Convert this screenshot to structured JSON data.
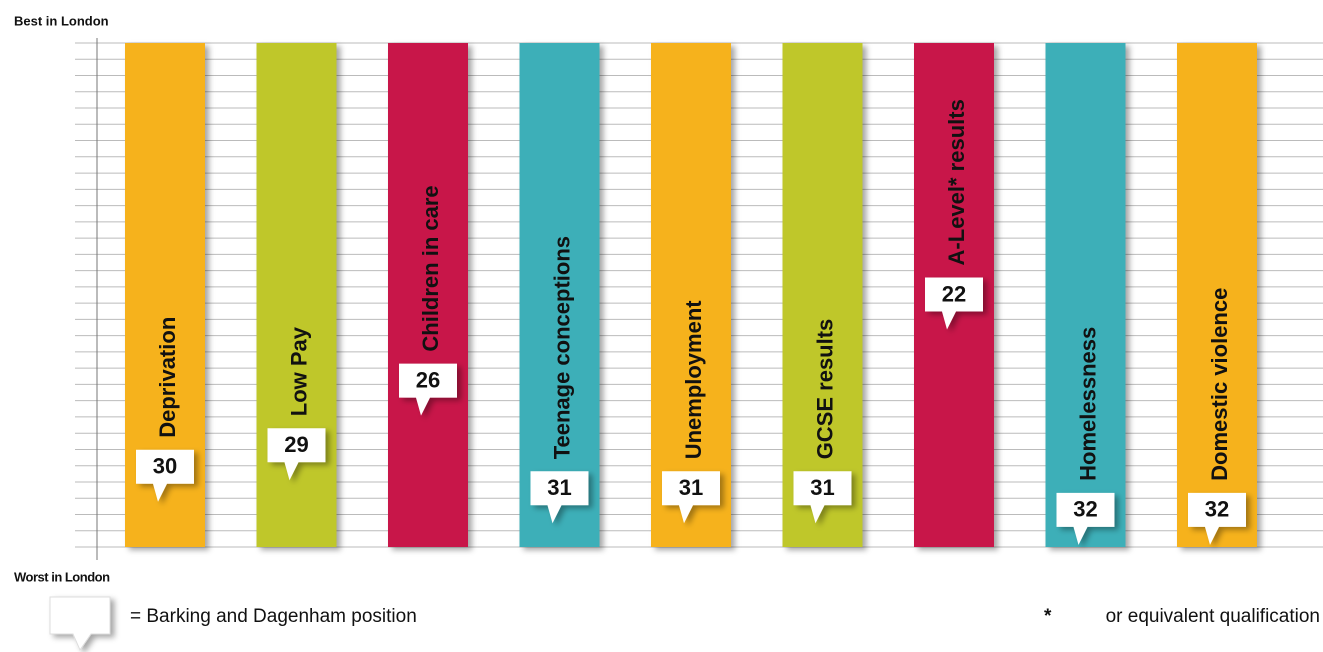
{
  "chart_data": {
    "type": "bar",
    "top_label": "Best in London",
    "bottom_label": "Worst in London",
    "legend_label": "= Barking and Dagenham position",
    "footnote_mark": "*",
    "footnote": "or equivalent qualification",
    "categories": [
      "Deprivation",
      "Low Pay",
      "Children in care",
      "Teenage conceptions",
      "Unemployment",
      "GCSE results",
      "A-Level* results",
      "Homelessness",
      "Domestic violence"
    ],
    "values": [
      30,
      29,
      26,
      31,
      31,
      31,
      22,
      32,
      32
    ],
    "colors": [
      "#f6b21b",
      "#bfc72a",
      "#c8194a",
      "#3eafb8",
      "#f6b21b",
      "#bfc72a",
      "#c8194a",
      "#3eafb8",
      "#f6b21b"
    ],
    "ylim": [
      8.7,
      32.1
    ],
    "inverted": true,
    "grid": true
  }
}
